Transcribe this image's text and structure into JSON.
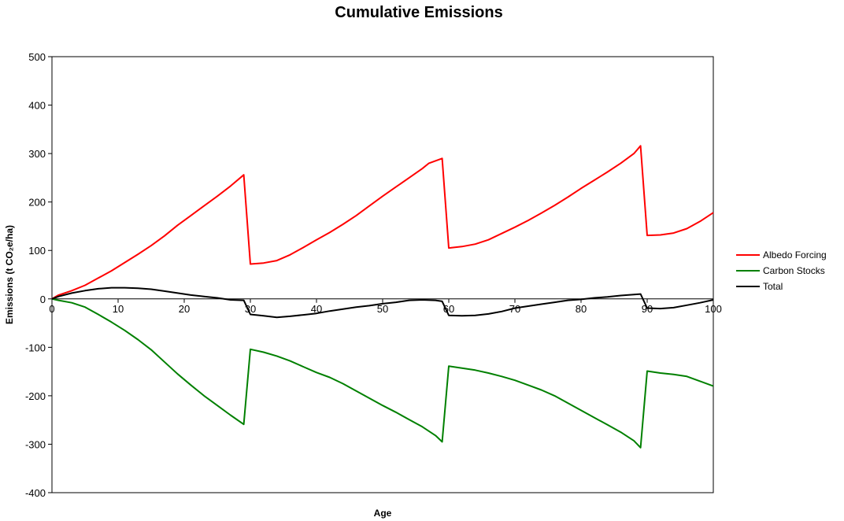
{
  "chart_data": {
    "type": "line",
    "title": "Cumulative Emissions",
    "xlabel": "Age",
    "ylabel": "Emissions (t CO₂e/ha)",
    "xlim": [
      0,
      100
    ],
    "ylim": [
      -400,
      500
    ],
    "x_ticks": [
      "0",
      "10",
      "20",
      "30",
      "40",
      "50",
      "60",
      "70",
      "80",
      "90",
      "100"
    ],
    "y_ticks": [
      "500",
      "400",
      "300",
      "200",
      "100",
      "0",
      "-100",
      "-200",
      "-300",
      "-400"
    ],
    "grid": false,
    "legend_position": "right",
    "series": [
      {
        "name": "Albedo Forcing",
        "color": "#ff0000",
        "points": [
          [
            0,
            0
          ],
          [
            1,
            8
          ],
          [
            3,
            17
          ],
          [
            5,
            28
          ],
          [
            7,
            43
          ],
          [
            9,
            58
          ],
          [
            11,
            75
          ],
          [
            13,
            92
          ],
          [
            15,
            110
          ],
          [
            17,
            130
          ],
          [
            19,
            152
          ],
          [
            21,
            172
          ],
          [
            23,
            192
          ],
          [
            25,
            212
          ],
          [
            27,
            233
          ],
          [
            29,
            256
          ],
          [
            30,
            72
          ],
          [
            32,
            74
          ],
          [
            34,
            79
          ],
          [
            36,
            91
          ],
          [
            38,
            106
          ],
          [
            40,
            122
          ],
          [
            42,
            137
          ],
          [
            44,
            154
          ],
          [
            46,
            172
          ],
          [
            48,
            192
          ],
          [
            50,
            212
          ],
          [
            52,
            231
          ],
          [
            54,
            250
          ],
          [
            56,
            269
          ],
          [
            57,
            280
          ],
          [
            59,
            290
          ],
          [
            60,
            105
          ],
          [
            62,
            108
          ],
          [
            64,
            113
          ],
          [
            66,
            122
          ],
          [
            68,
            135
          ],
          [
            70,
            148
          ],
          [
            72,
            162
          ],
          [
            74,
            177
          ],
          [
            76,
            193
          ],
          [
            78,
            210
          ],
          [
            80,
            228
          ],
          [
            82,
            245
          ],
          [
            84,
            262
          ],
          [
            86,
            280
          ],
          [
            88,
            300
          ],
          [
            89,
            316
          ],
          [
            90,
            131
          ],
          [
            92,
            132
          ],
          [
            94,
            136
          ],
          [
            96,
            145
          ],
          [
            98,
            160
          ],
          [
            100,
            178
          ]
        ]
      },
      {
        "name": "Carbon Stocks",
        "color": "#008000",
        "points": [
          [
            0,
            0
          ],
          [
            1,
            -3
          ],
          [
            3,
            -8
          ],
          [
            5,
            -17
          ],
          [
            7,
            -32
          ],
          [
            9,
            -48
          ],
          [
            11,
            -65
          ],
          [
            13,
            -84
          ],
          [
            15,
            -105
          ],
          [
            17,
            -130
          ],
          [
            19,
            -155
          ],
          [
            21,
            -178
          ],
          [
            23,
            -200
          ],
          [
            25,
            -220
          ],
          [
            27,
            -240
          ],
          [
            29,
            -259
          ],
          [
            30,
            -104
          ],
          [
            32,
            -110
          ],
          [
            34,
            -118
          ],
          [
            36,
            -128
          ],
          [
            38,
            -140
          ],
          [
            40,
            -152
          ],
          [
            42,
            -162
          ],
          [
            44,
            -175
          ],
          [
            46,
            -190
          ],
          [
            48,
            -205
          ],
          [
            50,
            -220
          ],
          [
            52,
            -234
          ],
          [
            54,
            -249
          ],
          [
            56,
            -264
          ],
          [
            58,
            -282
          ],
          [
            59,
            -295
          ],
          [
            60,
            -139
          ],
          [
            62,
            -143
          ],
          [
            64,
            -147
          ],
          [
            66,
            -153
          ],
          [
            68,
            -160
          ],
          [
            70,
            -168
          ],
          [
            72,
            -178
          ],
          [
            74,
            -188
          ],
          [
            76,
            -200
          ],
          [
            78,
            -215
          ],
          [
            80,
            -230
          ],
          [
            82,
            -245
          ],
          [
            84,
            -260
          ],
          [
            86,
            -275
          ],
          [
            88,
            -293
          ],
          [
            89,
            -307
          ],
          [
            90,
            -149
          ],
          [
            92,
            -153
          ],
          [
            94,
            -156
          ],
          [
            96,
            -160
          ],
          [
            98,
            -170
          ],
          [
            100,
            -180
          ]
        ]
      },
      {
        "name": "Total",
        "color": "#000000",
        "points": [
          [
            0,
            0
          ],
          [
            1,
            5
          ],
          [
            3,
            12
          ],
          [
            5,
            17
          ],
          [
            7,
            21
          ],
          [
            9,
            23
          ],
          [
            11,
            23
          ],
          [
            13,
            22
          ],
          [
            15,
            20
          ],
          [
            17,
            16
          ],
          [
            19,
            12
          ],
          [
            21,
            8
          ],
          [
            23,
            5
          ],
          [
            25,
            2
          ],
          [
            27,
            -2
          ],
          [
            29,
            -3
          ],
          [
            30,
            -32
          ],
          [
            32,
            -35
          ],
          [
            34,
            -38
          ],
          [
            36,
            -36
          ],
          [
            38,
            -33
          ],
          [
            40,
            -30
          ],
          [
            42,
            -25
          ],
          [
            44,
            -21
          ],
          [
            46,
            -17
          ],
          [
            48,
            -14
          ],
          [
            50,
            -10
          ],
          [
            52,
            -7
          ],
          [
            54,
            -3
          ],
          [
            56,
            -2
          ],
          [
            58,
            -3
          ],
          [
            59,
            -5
          ],
          [
            60,
            -34
          ],
          [
            62,
            -35
          ],
          [
            64,
            -34
          ],
          [
            66,
            -31
          ],
          [
            68,
            -26
          ],
          [
            70,
            -19
          ],
          [
            72,
            -15
          ],
          [
            74,
            -11
          ],
          [
            76,
            -7
          ],
          [
            78,
            -3
          ],
          [
            80,
            -1
          ],
          [
            82,
            2
          ],
          [
            84,
            4
          ],
          [
            86,
            7
          ],
          [
            88,
            9
          ],
          [
            89,
            10
          ],
          [
            90,
            -19
          ],
          [
            92,
            -20
          ],
          [
            94,
            -18
          ],
          [
            96,
            -13
          ],
          [
            98,
            -8
          ],
          [
            100,
            -2
          ]
        ]
      }
    ]
  }
}
